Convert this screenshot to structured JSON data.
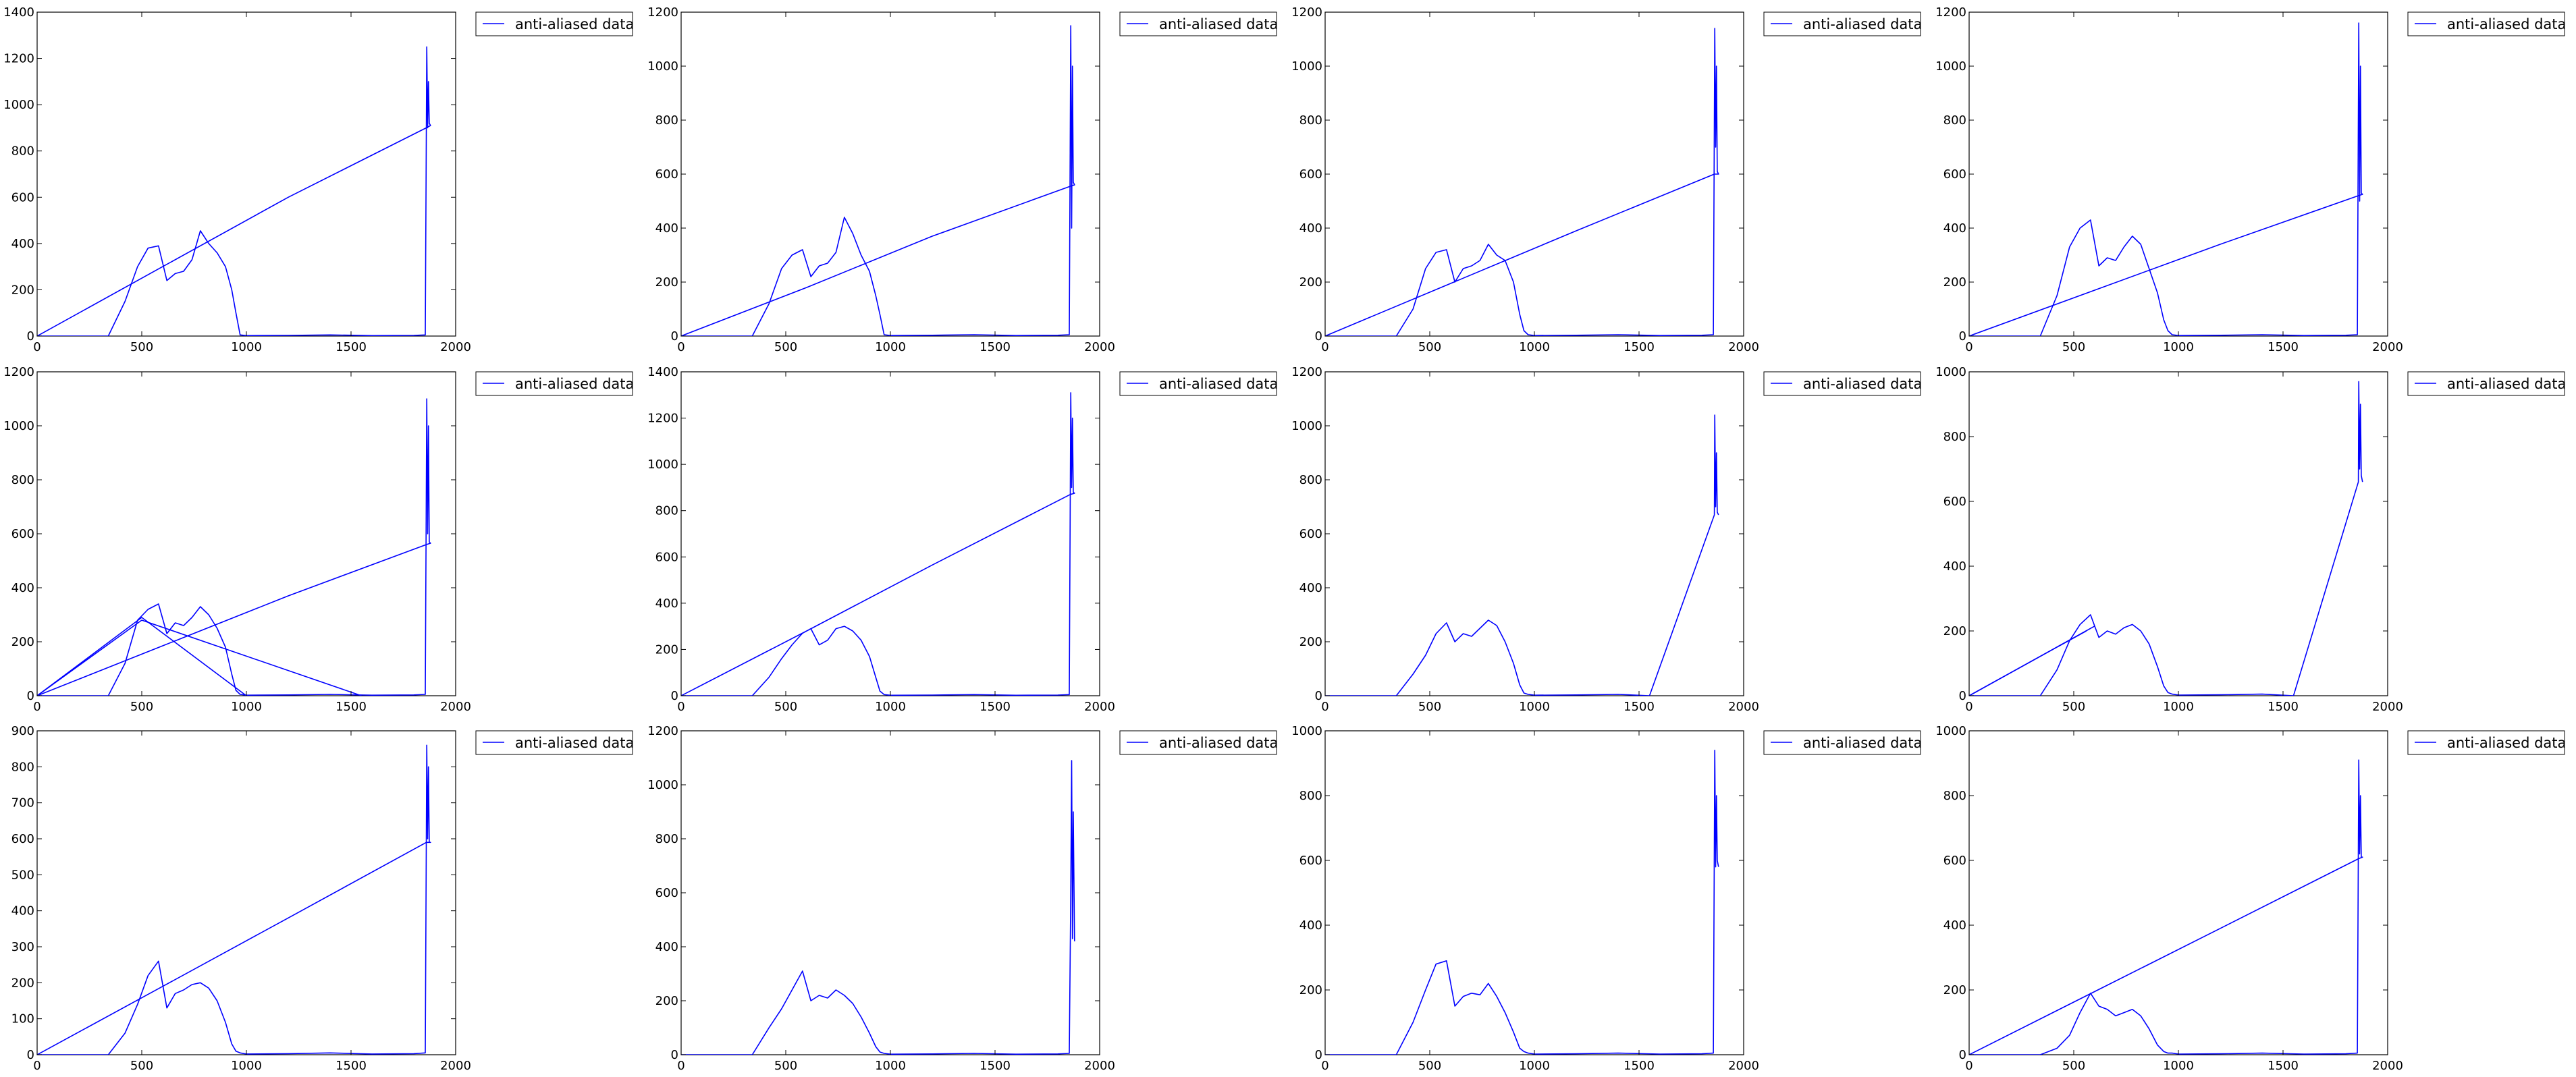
{
  "figure": {
    "rows": 3,
    "cols": 4,
    "line_color": "#0000ff"
  },
  "chart_data": [
    {
      "type": "line",
      "legend": "anti-aliased data",
      "legend_placement": "outside-right",
      "xlim": [
        0,
        2000
      ],
      "ylim": [
        0,
        1400
      ],
      "x_ticks": [
        0,
        500,
        1000,
        1500,
        2000
      ],
      "y_ticks": [
        0,
        200,
        400,
        600,
        800,
        1000,
        1200,
        1400
      ],
      "series": [
        {
          "x": [
            0,
            340,
            420,
            480,
            530,
            580,
            620,
            660,
            700,
            740,
            780,
            820,
            860,
            900,
            930,
            950,
            970,
            1000,
            1200,
            1400,
            1600,
            1800,
            1855,
            1862,
            1866,
            1870,
            1874,
            1880,
            1860,
            1200,
            600,
            0
          ],
          "y": [
            0,
            0,
            150,
            300,
            380,
            390,
            240,
            270,
            280,
            330,
            455,
            400,
            360,
            300,
            200,
            100,
            5,
            2,
            3,
            5,
            2,
            3,
            5,
            1250,
            900,
            1100,
            920,
            910,
            900,
            600,
            300,
            0
          ]
        }
      ]
    },
    {
      "type": "line",
      "legend": "anti-aliased data",
      "legend_placement": "outside-right",
      "xlim": [
        0,
        2000
      ],
      "ylim": [
        0,
        1200
      ],
      "x_ticks": [
        0,
        500,
        1000,
        1500,
        2000
      ],
      "y_ticks": [
        0,
        200,
        400,
        600,
        800,
        1000,
        1200
      ],
      "series": [
        {
          "x": [
            0,
            340,
            420,
            480,
            530,
            580,
            620,
            660,
            700,
            740,
            780,
            820,
            860,
            900,
            930,
            950,
            970,
            1000,
            1200,
            1400,
            1600,
            1800,
            1855,
            1862,
            1866,
            1870,
            1874,
            1880,
            1860,
            1200,
            600,
            0
          ],
          "y": [
            0,
            0,
            120,
            250,
            300,
            320,
            220,
            260,
            270,
            310,
            440,
            380,
            300,
            240,
            150,
            80,
            5,
            2,
            3,
            5,
            2,
            3,
            5,
            1150,
            400,
            1000,
            570,
            560,
            555,
            370,
            180,
            0
          ]
        }
      ]
    },
    {
      "type": "line",
      "legend": "anti-aliased data",
      "legend_placement": "outside-right",
      "xlim": [
        0,
        2000
      ],
      "ylim": [
        0,
        1200
      ],
      "x_ticks": [
        0,
        500,
        1000,
        1500,
        2000
      ],
      "y_ticks": [
        0,
        200,
        400,
        600,
        800,
        1000,
        1200
      ],
      "series": [
        {
          "x": [
            0,
            340,
            420,
            480,
            530,
            580,
            620,
            660,
            700,
            740,
            780,
            820,
            860,
            900,
            930,
            950,
            970,
            1000,
            1200,
            1400,
            1600,
            1800,
            1855,
            1862,
            1866,
            1870,
            1874,
            1880,
            1860,
            1200,
            600,
            0
          ],
          "y": [
            0,
            0,
            100,
            250,
            310,
            320,
            200,
            250,
            260,
            280,
            340,
            300,
            280,
            200,
            80,
            20,
            5,
            2,
            3,
            5,
            2,
            3,
            5,
            1140,
            700,
            1000,
            610,
            600,
            600,
            390,
            195,
            0
          ]
        }
      ]
    },
    {
      "type": "line",
      "legend": "anti-aliased data",
      "legend_placement": "outside-right",
      "xlim": [
        0,
        2000
      ],
      "ylim": [
        0,
        1200
      ],
      "x_ticks": [
        0,
        500,
        1000,
        1500,
        2000
      ],
      "y_ticks": [
        0,
        200,
        400,
        600,
        800,
        1000,
        1200
      ],
      "series": [
        {
          "x": [
            0,
            340,
            420,
            480,
            530,
            580,
            620,
            660,
            700,
            740,
            780,
            820,
            860,
            900,
            930,
            950,
            970,
            1000,
            1200,
            1400,
            1600,
            1800,
            1855,
            1862,
            1866,
            1870,
            1874,
            1880,
            1860,
            1200,
            600,
            0
          ],
          "y": [
            0,
            0,
            150,
            330,
            400,
            430,
            260,
            290,
            280,
            330,
            370,
            340,
            250,
            160,
            60,
            20,
            5,
            2,
            3,
            5,
            2,
            3,
            5,
            1160,
            500,
            1000,
            530,
            525,
            520,
            340,
            170,
            0
          ]
        }
      ]
    },
    {
      "type": "line",
      "legend": "anti-aliased data",
      "legend_placement": "outside-right",
      "xlim": [
        0,
        2000
      ],
      "ylim": [
        0,
        1200
      ],
      "x_ticks": [
        0,
        500,
        1000,
        1500,
        2000
      ],
      "y_ticks": [
        0,
        200,
        400,
        600,
        800,
        1000,
        1200
      ],
      "series": [
        {
          "x": [
            0,
            340,
            420,
            480,
            530,
            580,
            620,
            660,
            700,
            740,
            780,
            820,
            860,
            900,
            930,
            950,
            970,
            1000,
            1200,
            1400,
            1600,
            1800,
            1855,
            1862,
            1866,
            1870,
            1874,
            1880,
            1860,
            1200,
            600,
            0
          ],
          "y": [
            0,
            0,
            120,
            280,
            320,
            340,
            230,
            270,
            260,
            290,
            330,
            300,
            250,
            180,
            80,
            20,
            5,
            2,
            3,
            5,
            2,
            3,
            5,
            1100,
            600,
            1000,
            570,
            565,
            560,
            370,
            185,
            0
          ]
        },
        {
          "x": [
            0,
            500,
            1000
          ],
          "y": [
            0,
            290,
            0
          ]
        },
        {
          "x": [
            0,
            500,
            1550
          ],
          "y": [
            0,
            280,
            0
          ]
        }
      ]
    },
    {
      "type": "line",
      "legend": "anti-aliased data",
      "legend_placement": "outside-right",
      "xlim": [
        0,
        2000
      ],
      "ylim": [
        0,
        1400
      ],
      "x_ticks": [
        0,
        500,
        1000,
        1500,
        2000
      ],
      "y_ticks": [
        0,
        200,
        400,
        600,
        800,
        1000,
        1200,
        1400
      ],
      "series": [
        {
          "x": [
            0,
            340,
            420,
            480,
            530,
            580,
            620,
            660,
            700,
            740,
            780,
            820,
            860,
            900,
            930,
            950,
            970,
            1000,
            1200,
            1400,
            1600,
            1800,
            1855,
            1862,
            1866,
            1870,
            1874,
            1880,
            1860,
            1200,
            600,
            0
          ],
          "y": [
            0,
            0,
            80,
            160,
            220,
            270,
            290,
            220,
            240,
            290,
            300,
            280,
            240,
            170,
            80,
            20,
            5,
            2,
            3,
            5,
            2,
            3,
            5,
            1310,
            900,
            1200,
            880,
            875,
            870,
            565,
            280,
            0
          ]
        }
      ]
    },
    {
      "type": "line",
      "legend": "anti-aliased data",
      "legend_placement": "outside-right",
      "xlim": [
        0,
        2000
      ],
      "ylim": [
        0,
        1200
      ],
      "x_ticks": [
        0,
        500,
        1000,
        1500,
        2000
      ],
      "y_ticks": [
        0,
        200,
        400,
        600,
        800,
        1000,
        1200
      ],
      "series": [
        {
          "x": [
            0,
            340,
            420,
            480,
            530,
            580,
            620,
            660,
            700,
            740,
            780,
            820,
            860,
            900,
            930,
            950,
            970,
            1000,
            1200,
            1400,
            1550,
            1860,
            1862,
            1866,
            1870,
            1874,
            1880
          ],
          "y": [
            0,
            0,
            80,
            150,
            230,
            270,
            200,
            230,
            220,
            250,
            280,
            260,
            200,
            120,
            40,
            10,
            5,
            2,
            3,
            5,
            0,
            670,
            1040,
            700,
            900,
            680,
            670
          ]
        }
      ]
    },
    {
      "type": "line",
      "legend": "anti-aliased data",
      "legend_placement": "outside-right",
      "xlim": [
        0,
        2000
      ],
      "ylim": [
        0,
        1000
      ],
      "x_ticks": [
        0,
        500,
        1000,
        1500,
        2000
      ],
      "y_ticks": [
        0,
        200,
        400,
        600,
        800,
        1000
      ],
      "series": [
        {
          "x": [
            0,
            340,
            420,
            480,
            530,
            580,
            620,
            660,
            700,
            740,
            780,
            820,
            860,
            900,
            930,
            950,
            970,
            1000,
            1200,
            1400,
            1550,
            1860,
            1862,
            1866,
            1870,
            1874,
            1880
          ],
          "y": [
            0,
            0,
            80,
            170,
            220,
            250,
            180,
            200,
            190,
            210,
            220,
            200,
            160,
            90,
            30,
            10,
            5,
            2,
            3,
            5,
            0,
            660,
            970,
            700,
            900,
            680,
            660
          ]
        },
        {
          "x": [
            0,
            560
          ],
          "y": [
            0,
            200
          ]
        },
        {
          "x": [
            0,
            600
          ],
          "y": [
            0,
            215
          ]
        }
      ]
    },
    {
      "type": "line",
      "legend": "anti-aliased data",
      "legend_placement": "outside-right",
      "xlim": [
        0,
        2000
      ],
      "ylim": [
        0,
        900
      ],
      "x_ticks": [
        0,
        500,
        1000,
        1500,
        2000
      ],
      "y_ticks": [
        0,
        100,
        200,
        300,
        400,
        500,
        600,
        700,
        800,
        900
      ],
      "series": [
        {
          "x": [
            0,
            340,
            420,
            480,
            530,
            580,
            620,
            660,
            700,
            740,
            780,
            820,
            860,
            900,
            930,
            950,
            970,
            1000,
            1200,
            1400,
            1600,
            1800,
            1855,
            1862,
            1866,
            1870,
            1874,
            1880,
            1860,
            1200,
            600,
            0
          ],
          "y": [
            0,
            0,
            60,
            140,
            220,
            260,
            130,
            170,
            180,
            195,
            200,
            185,
            150,
            90,
            30,
            10,
            5,
            2,
            3,
            5,
            2,
            3,
            5,
            860,
            600,
            800,
            590,
            590,
            590,
            380,
            190,
            0
          ]
        }
      ]
    },
    {
      "type": "line",
      "legend": "anti-aliased data",
      "legend_placement": "outside-right",
      "xlim": [
        0,
        2000
      ],
      "ylim": [
        0,
        1200
      ],
      "x_ticks": [
        0,
        500,
        1000,
        1500,
        2000
      ],
      "y_ticks": [
        0,
        200,
        400,
        600,
        800,
        1000,
        1200
      ],
      "series": [
        {
          "x": [
            0,
            340,
            420,
            480,
            530,
            580,
            620,
            660,
            700,
            740,
            780,
            820,
            860,
            900,
            930,
            950,
            970,
            1000,
            1200,
            1400,
            1600,
            1800,
            1855,
            1862,
            1866,
            1870,
            1874,
            1880
          ],
          "y": [
            0,
            0,
            100,
            170,
            240,
            310,
            200,
            220,
            210,
            240,
            220,
            190,
            140,
            80,
            30,
            10,
            5,
            2,
            3,
            5,
            2,
            3,
            5,
            600,
            1090,
            430,
            900,
            420
          ]
        }
      ]
    },
    {
      "type": "line",
      "legend": "anti-aliased data",
      "legend_placement": "outside-right",
      "xlim": [
        0,
        2000
      ],
      "ylim": [
        0,
        1000
      ],
      "x_ticks": [
        0,
        500,
        1000,
        1500,
        2000
      ],
      "y_ticks": [
        0,
        200,
        400,
        600,
        800,
        1000
      ],
      "series": [
        {
          "x": [
            0,
            340,
            420,
            480,
            530,
            580,
            620,
            660,
            700,
            740,
            780,
            820,
            860,
            900,
            930,
            950,
            970,
            1000,
            1200,
            1400,
            1600,
            1800,
            1855,
            1862,
            1866,
            1870,
            1874,
            1880
          ],
          "y": [
            0,
            0,
            100,
            200,
            280,
            290,
            150,
            180,
            190,
            185,
            220,
            180,
            130,
            70,
            20,
            10,
            5,
            2,
            3,
            5,
            2,
            3,
            5,
            940,
            580,
            800,
            600,
            580
          ]
        }
      ]
    },
    {
      "type": "line",
      "legend": "anti-aliased data",
      "legend_placement": "outside-right",
      "xlim": [
        0,
        2000
      ],
      "ylim": [
        0,
        1000
      ],
      "x_ticks": [
        0,
        500,
        1000,
        1500,
        2000
      ],
      "y_ticks": [
        0,
        200,
        400,
        600,
        800,
        1000
      ],
      "series": [
        {
          "x": [
            0,
            340,
            420,
            480,
            530,
            580,
            620,
            660,
            700,
            740,
            780,
            820,
            860,
            900,
            930,
            950,
            970,
            1000,
            1200,
            1400,
            1600,
            1800,
            1855,
            1862,
            1866,
            1870,
            1874,
            1880,
            1860,
            1200,
            600,
            0
          ],
          "y": [
            0,
            0,
            20,
            60,
            130,
            190,
            150,
            140,
            120,
            130,
            140,
            120,
            80,
            30,
            10,
            5,
            5,
            2,
            3,
            5,
            2,
            3,
            5,
            910,
            620,
            800,
            610,
            610,
            605,
            390,
            195,
            0
          ]
        }
      ]
    }
  ]
}
